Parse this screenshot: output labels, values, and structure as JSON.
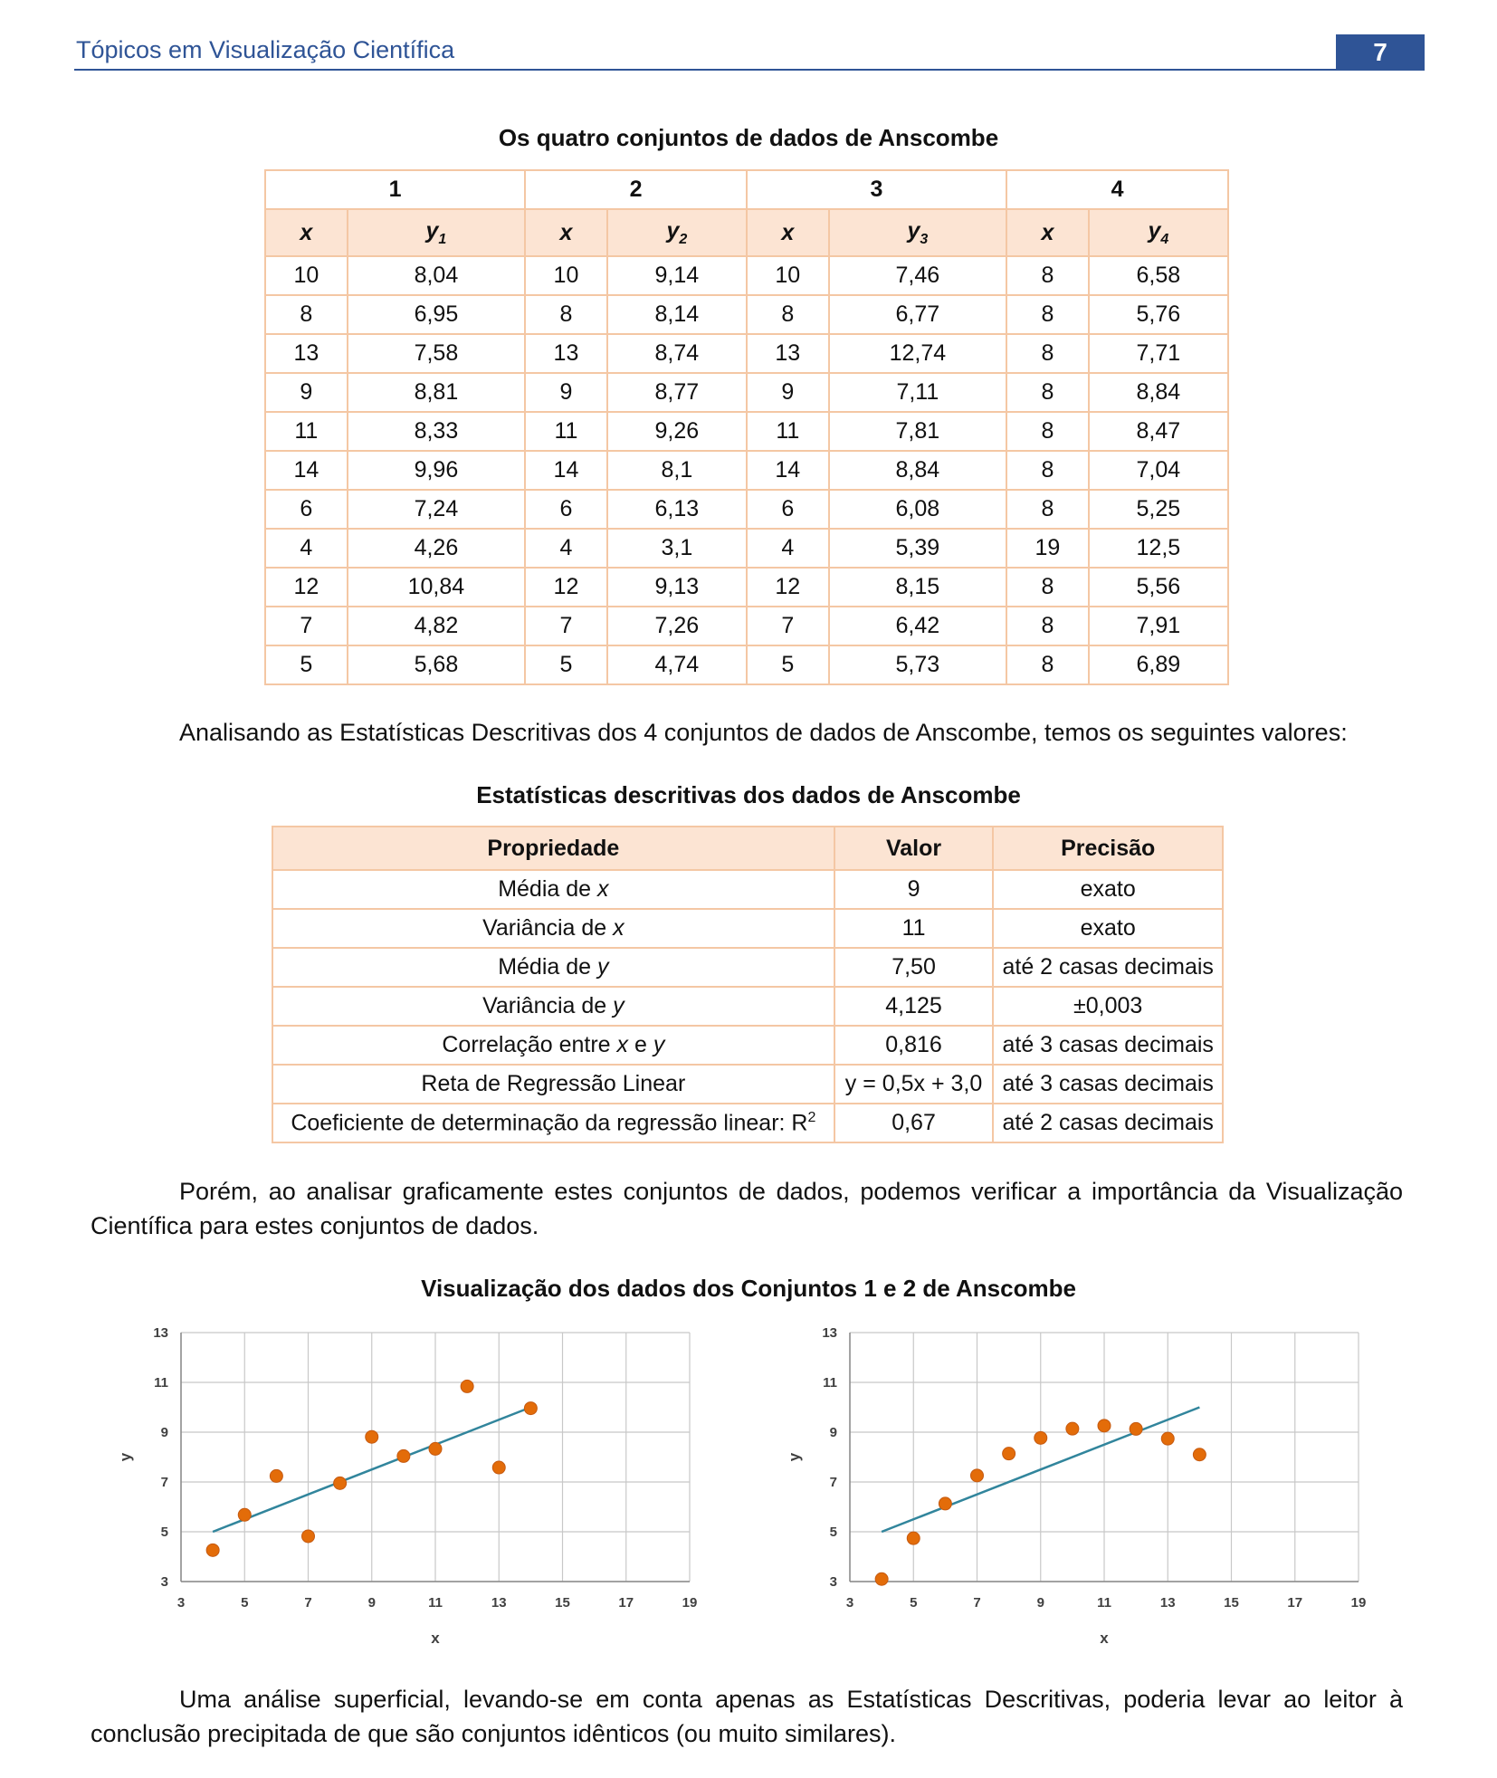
{
  "header": {
    "title": "Tópicos em Visualização Científica",
    "page_number": "7"
  },
  "table1": {
    "caption": "Os quatro conjuntos de dados de Anscombe",
    "groups": [
      "1",
      "2",
      "3",
      "4"
    ],
    "columns": [
      {
        "base": "x",
        "sub": ""
      },
      {
        "base": "y",
        "sub": "1"
      },
      {
        "base": "x",
        "sub": ""
      },
      {
        "base": "y",
        "sub": "2"
      },
      {
        "base": "x",
        "sub": ""
      },
      {
        "base": "y",
        "sub": "3"
      },
      {
        "base": "x",
        "sub": ""
      },
      {
        "base": "y",
        "sub": "4"
      }
    ],
    "rows": [
      [
        "10",
        "8,04",
        "10",
        "9,14",
        "10",
        "7,46",
        "8",
        "6,58"
      ],
      [
        "8",
        "6,95",
        "8",
        "8,14",
        "8",
        "6,77",
        "8",
        "5,76"
      ],
      [
        "13",
        "7,58",
        "13",
        "8,74",
        "13",
        "12,74",
        "8",
        "7,71"
      ],
      [
        "9",
        "8,81",
        "9",
        "8,77",
        "9",
        "7,11",
        "8",
        "8,84"
      ],
      [
        "11",
        "8,33",
        "11",
        "9,26",
        "11",
        "7,81",
        "8",
        "8,47"
      ],
      [
        "14",
        "9,96",
        "14",
        "8,1",
        "14",
        "8,84",
        "8",
        "7,04"
      ],
      [
        "6",
        "7,24",
        "6",
        "6,13",
        "6",
        "6,08",
        "8",
        "5,25"
      ],
      [
        "4",
        "4,26",
        "4",
        "3,1",
        "4",
        "5,39",
        "19",
        "12,5"
      ],
      [
        "12",
        "10,84",
        "12",
        "9,13",
        "12",
        "8,15",
        "8",
        "5,56"
      ],
      [
        "7",
        "4,82",
        "7",
        "7,26",
        "7",
        "6,42",
        "8",
        "7,91"
      ],
      [
        "5",
        "5,68",
        "5",
        "4,74",
        "5",
        "5,73",
        "8",
        "6,89"
      ]
    ]
  },
  "para1": "Analisando as Estatísticas Descritivas dos 4 conjuntos de dados de Anscombe, temos os seguintes valores:",
  "table2": {
    "caption": "Estatísticas descritivas dos dados de Anscombe",
    "headers": [
      "Propriedade",
      "Valor",
      "Precisão"
    ],
    "rows": [
      {
        "prop": [
          {
            "t": "Média de "
          },
          {
            "t": "x",
            "i": true
          }
        ],
        "valor": "9",
        "precisao": "exato"
      },
      {
        "prop": [
          {
            "t": "Variância de "
          },
          {
            "t": "x",
            "i": true
          }
        ],
        "valor": "11",
        "precisao": "exato"
      },
      {
        "prop": [
          {
            "t": "Média de "
          },
          {
            "t": "y",
            "i": true
          }
        ],
        "valor": "7,50",
        "precisao": "até 2 casas decimais"
      },
      {
        "prop": [
          {
            "t": "Variância de "
          },
          {
            "t": "y",
            "i": true
          }
        ],
        "valor": "4,125",
        "precisao": "±0,003"
      },
      {
        "prop": [
          {
            "t": "Correlação entre "
          },
          {
            "t": "x",
            "i": true
          },
          {
            "t": " e "
          },
          {
            "t": "y",
            "i": true
          }
        ],
        "valor": "0,816",
        "precisao": "até 3 casas decimais"
      },
      {
        "prop": [
          {
            "t": "Reta de Regressão Linear"
          }
        ],
        "valor": "y = 0,5x + 3,0",
        "precisao": "até 3 casas decimais"
      },
      {
        "prop": [
          {
            "t": "Coeficiente de determinação da regressão linear: R"
          },
          {
            "t": "2",
            "sup": true
          }
        ],
        "valor": "0,67",
        "precisao": "até 2 casas decimais"
      }
    ]
  },
  "para2": "Porém, ao analisar graficamente estes conjuntos de dados, podemos verificar a importância da Visualização Científica para estes conjuntos de dados.",
  "charts_caption": "Visualização dos dados dos Conjuntos 1 e 2 de Anscombe",
  "chart_data": [
    {
      "type": "scatter",
      "xlabel": "x",
      "ylabel": "y",
      "xlim": [
        3,
        19
      ],
      "ylim": [
        3,
        13
      ],
      "xticks": [
        3,
        5,
        7,
        9,
        11,
        13,
        15,
        17,
        19
      ],
      "yticks": [
        3,
        5,
        7,
        9,
        11,
        13
      ],
      "grid": true,
      "point_color": "#e36c09",
      "line_color": "#31859c",
      "points": [
        [
          10,
          8.04
        ],
        [
          8,
          6.95
        ],
        [
          13,
          7.58
        ],
        [
          9,
          8.81
        ],
        [
          11,
          8.33
        ],
        [
          14,
          9.96
        ],
        [
          6,
          7.24
        ],
        [
          4,
          4.26
        ],
        [
          12,
          10.84
        ],
        [
          7,
          4.82
        ],
        [
          5,
          5.68
        ]
      ],
      "trendline": [
        [
          4,
          5.0
        ],
        [
          14,
          10.0
        ]
      ]
    },
    {
      "type": "scatter",
      "xlabel": "x",
      "ylabel": "y",
      "xlim": [
        3,
        19
      ],
      "ylim": [
        3,
        13
      ],
      "xticks": [
        3,
        5,
        7,
        9,
        11,
        13,
        15,
        17,
        19
      ],
      "yticks": [
        3,
        5,
        7,
        9,
        11,
        13
      ],
      "grid": true,
      "point_color": "#e36c09",
      "line_color": "#31859c",
      "points": [
        [
          10,
          9.14
        ],
        [
          8,
          8.14
        ],
        [
          13,
          8.74
        ],
        [
          9,
          8.77
        ],
        [
          11,
          9.26
        ],
        [
          14,
          8.1
        ],
        [
          6,
          6.13
        ],
        [
          4,
          3.1
        ],
        [
          12,
          9.13
        ],
        [
          7,
          7.26
        ],
        [
          5,
          4.74
        ]
      ],
      "trendline": [
        [
          4,
          5.0
        ],
        [
          14,
          10.0
        ]
      ]
    }
  ],
  "para3": "Uma análise superficial, levando-se em conta apenas as Estatísticas Descritivas, poderia levar ao leitor à conclusão precipitada de que são conjuntos idênticos (ou muito similares)."
}
